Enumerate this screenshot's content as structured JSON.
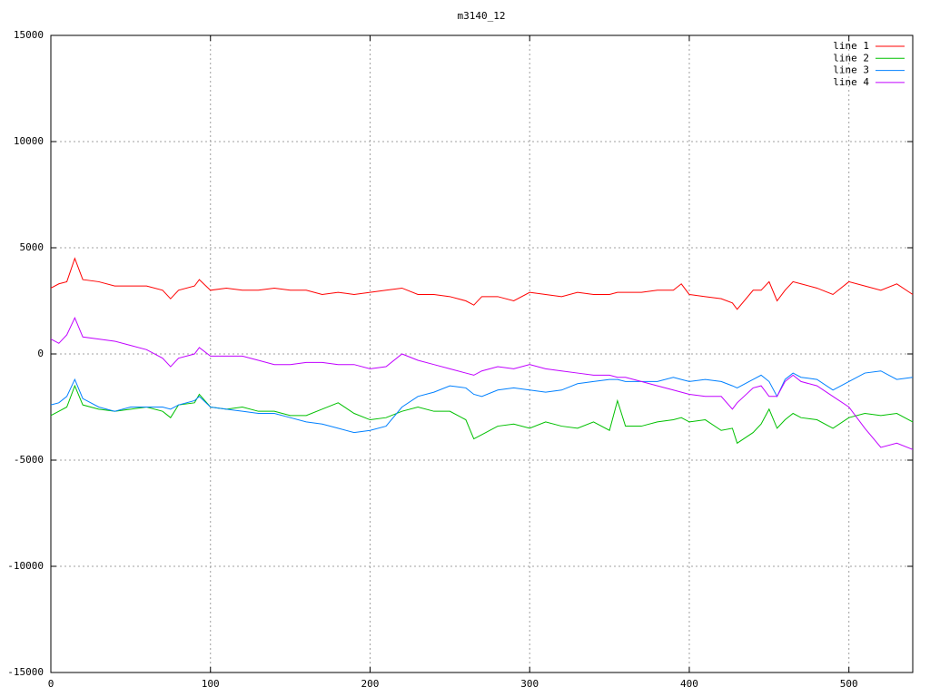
{
  "chart_data": {
    "type": "line",
    "title": "m3140_12",
    "x": [
      0,
      5,
      10,
      15,
      20,
      30,
      40,
      50,
      60,
      70,
      75,
      80,
      90,
      93,
      100,
      110,
      120,
      130,
      140,
      150,
      160,
      170,
      180,
      190,
      200,
      210,
      220,
      230,
      240,
      250,
      260,
      265,
      270,
      280,
      290,
      300,
      310,
      320,
      330,
      340,
      350,
      355,
      360,
      370,
      380,
      390,
      395,
      400,
      410,
      420,
      427,
      430,
      440,
      445,
      450,
      455,
      460,
      465,
      470,
      480,
      490,
      500,
      510,
      520,
      530,
      540
    ],
    "series": [
      {
        "name": "line 1",
        "color": "#ff0000",
        "values": [
          3100,
          3300,
          3400,
          4500,
          3500,
          3400,
          3200,
          3200,
          3200,
          3000,
          2600,
          3000,
          3200,
          3500,
          3000,
          3100,
          3000,
          3000,
          3100,
          3000,
          3000,
          2800,
          2900,
          2800,
          2900,
          3000,
          3100,
          2800,
          2800,
          2700,
          2500,
          2300,
          2700,
          2700,
          2500,
          2900,
          2800,
          2700,
          2900,
          2800,
          2800,
          2900,
          2900,
          2900,
          3000,
          3000,
          3300,
          2800,
          2700,
          2600,
          2400,
          2100,
          3000,
          3000,
          3400,
          2500,
          3000,
          3400,
          3300,
          3100,
          2800,
          3400,
          3200,
          3000,
          3300,
          2800
        ]
      },
      {
        "name": "line 2",
        "color": "#00c000",
        "values": [
          -2900,
          -2700,
          -2500,
          -1500,
          -2400,
          -2600,
          -2700,
          -2600,
          -2500,
          -2700,
          -3000,
          -2400,
          -2300,
          -1900,
          -2500,
          -2600,
          -2500,
          -2700,
          -2700,
          -2900,
          -2900,
          -2600,
          -2300,
          -2800,
          -3100,
          -3000,
          -2700,
          -2500,
          -2700,
          -2700,
          -3100,
          -4000,
          -3800,
          -3400,
          -3300,
          -3500,
          -3200,
          -3400,
          -3500,
          -3200,
          -3600,
          -2200,
          -3400,
          -3400,
          -3200,
          -3100,
          -3000,
          -3200,
          -3100,
          -3600,
          -3500,
          -4200,
          -3700,
          -3300,
          -2600,
          -3500,
          -3100,
          -2800,
          -3000,
          -3100,
          -3500,
          -3000,
          -2800,
          -2900,
          -2800,
          -3200
        ]
      },
      {
        "name": "line 3",
        "color": "#0080ff",
        "values": [
          -2400,
          -2300,
          -2000,
          -1200,
          -2100,
          -2500,
          -2700,
          -2500,
          -2500,
          -2500,
          -2600,
          -2400,
          -2200,
          -2000,
          -2500,
          -2600,
          -2700,
          -2800,
          -2800,
          -3000,
          -3200,
          -3300,
          -3500,
          -3700,
          -3600,
          -3400,
          -2500,
          -2000,
          -1800,
          -1500,
          -1600,
          -1900,
          -2000,
          -1700,
          -1600,
          -1700,
          -1800,
          -1700,
          -1400,
          -1300,
          -1200,
          -1200,
          -1300,
          -1300,
          -1300,
          -1100,
          -1200,
          -1300,
          -1200,
          -1300,
          -1500,
          -1600,
          -1200,
          -1000,
          -1300,
          -2000,
          -1200,
          -900,
          -1100,
          -1200,
          -1700,
          -1300,
          -900,
          -800,
          -1200,
          -1100
        ]
      },
      {
        "name": "line 4",
        "color": "#c000ff",
        "values": [
          700,
          500,
          900,
          1700,
          800,
          700,
          600,
          400,
          200,
          -200,
          -600,
          -200,
          0,
          300,
          -100,
          -100,
          -100,
          -300,
          -500,
          -500,
          -400,
          -400,
          -500,
          -500,
          -700,
          -600,
          0,
          -300,
          -500,
          -700,
          -900,
          -1000,
          -800,
          -600,
          -700,
          -500,
          -700,
          -800,
          -900,
          -1000,
          -1000,
          -1100,
          -1100,
          -1300,
          -1500,
          -1700,
          -1800,
          -1900,
          -2000,
          -2000,
          -2600,
          -2300,
          -1600,
          -1500,
          -2000,
          -2000,
          -1300,
          -1000,
          -1300,
          -1500,
          -2000,
          -2500,
          -3500,
          -4400,
          -4200,
          -4500
        ]
      }
    ],
    "xlim": [
      0,
      540
    ],
    "xticks": [
      0,
      100,
      200,
      300,
      400,
      500
    ],
    "ylim": [
      -15000,
      15000
    ],
    "yticks": [
      -15000,
      -10000,
      -5000,
      0,
      5000,
      10000,
      15000
    ],
    "grid": true,
    "legend": "top-right"
  }
}
